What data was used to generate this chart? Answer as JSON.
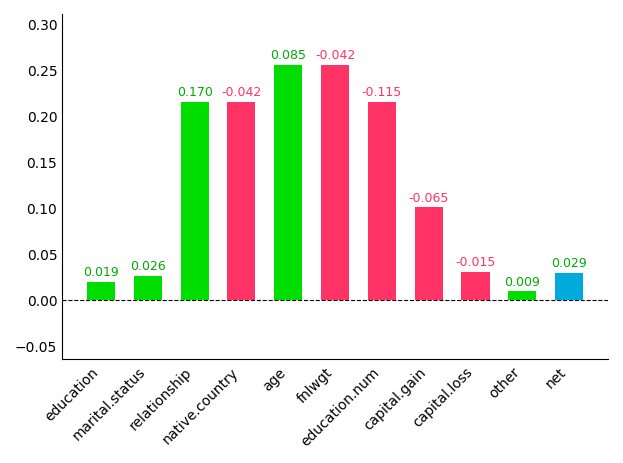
{
  "categories": [
    "education",
    "marital.status",
    "relationship",
    "native.country",
    "age",
    "fnlwgt",
    "education.num",
    "capital.gain",
    "capital.loss",
    "other",
    "net"
  ],
  "bar_heights": [
    0.019,
    0.026,
    0.215,
    0.215,
    0.255,
    0.255,
    0.215,
    0.1,
    0.03,
    0.009,
    0.029
  ],
  "bar_colors": [
    "#00dd00",
    "#00dd00",
    "#00dd00",
    "#ff3366",
    "#00dd00",
    "#ff3366",
    "#ff3366",
    "#ff3366",
    "#ff3366",
    "#00dd00",
    "#00aadd"
  ],
  "labels": [
    "0.019",
    "0.026",
    "0.170",
    "-0.042",
    "0.085",
    "-0.042",
    "-0.115",
    "-0.065",
    "-0.015",
    "0.009",
    "0.029"
  ],
  "label_values": [
    0.019,
    0.026,
    0.17,
    -0.042,
    0.085,
    -0.042,
    -0.115,
    -0.065,
    -0.015,
    0.009,
    0.029
  ],
  "label_colors": [
    "#00aa00",
    "#00aa00",
    "#00aa00",
    "#ff3366",
    "#00aa00",
    "#ff3366",
    "#ff3366",
    "#ff3366",
    "#ff3366",
    "#00aa00",
    "#00aa00"
  ],
  "ylim": [
    -0.065,
    0.31
  ],
  "yticks": [
    -0.05,
    0.0,
    0.05,
    0.1,
    0.15,
    0.2,
    0.25,
    0.3
  ],
  "figsize": [
    6.23,
    4.64
  ],
  "dpi": 100
}
